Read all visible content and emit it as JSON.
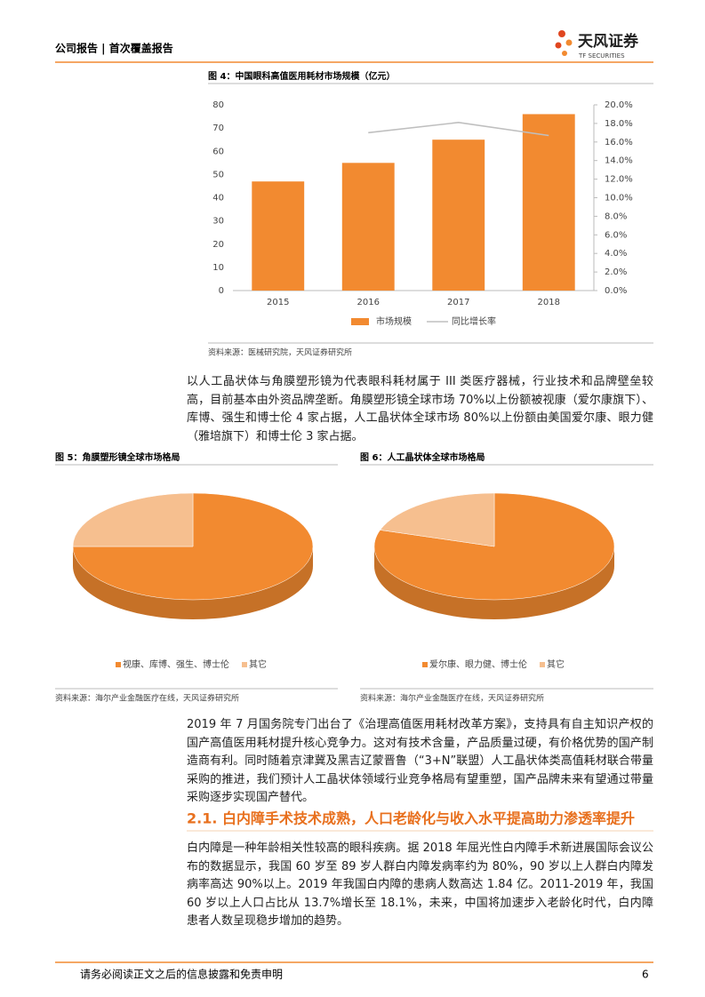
{
  "header": {
    "title": "公司报告 | 首次覆盖报告",
    "logo": "天风证券",
    "logo_sub": "TF SECURITIES"
  },
  "chart_data": [
    {
      "type": "bar",
      "title": "图 4：中国眼科高值医用耗材市场规模（亿元）",
      "categories": [
        "2015",
        "2016",
        "2017",
        "2018"
      ],
      "series": [
        {
          "name": "市场规模",
          "type": "bar",
          "color": "#f28a30",
          "values": [
            47,
            55,
            65,
            76
          ]
        },
        {
          "name": "同比增长率",
          "type": "line",
          "axis": "y2",
          "color": "#bfbfbf",
          "values": [
            null,
            17.0,
            18.1,
            16.7
          ]
        }
      ],
      "ylim": [
        0,
        80
      ],
      "yticks": [
        0,
        10,
        20,
        30,
        40,
        50,
        60,
        70,
        80
      ],
      "y2lim": [
        0,
        20
      ],
      "y2ticks": [
        {
          "value": 0,
          "label": "0.0%"
        },
        {
          "value": 2,
          "label": "2.0%"
        },
        {
          "value": 4,
          "label": "4.0%"
        },
        {
          "value": 6,
          "label": "6.0%"
        },
        {
          "value": 8,
          "label": "8.0%"
        },
        {
          "value": 10,
          "label": "10.0%"
        },
        {
          "value": 12,
          "label": "12.0%"
        },
        {
          "value": 14,
          "label": "14.0%"
        },
        {
          "value": 16,
          "label": "16.0%"
        },
        {
          "value": 18,
          "label": "18.0%"
        },
        {
          "value": 20,
          "label": "20.0%"
        }
      ],
      "legend": "bottom",
      "source": "资料来源：医械研究院，天风证券研究所"
    },
    {
      "type": "pie",
      "title": "图 5：角膜塑形镜全球市场格局",
      "categories": [
        "视康、库博、强生、博士伦",
        "其它"
      ],
      "values": [
        75,
        25
      ],
      "colors": [
        "#f28a30",
        "#f6bf8f"
      ],
      "legend": "bottom",
      "source": "资料来源：海尔产业金融医疗在线，天风证券研究所"
    },
    {
      "type": "pie",
      "title": "图 6：人工晶状体全球市场格局",
      "categories": [
        "爱尔康、眼力健、博士伦",
        "其它"
      ],
      "values": [
        80,
        20
      ],
      "colors": [
        "#f28a30",
        "#f6bf8f"
      ],
      "legend": "bottom",
      "source": "资料来源：海尔产业金融医疗在线，天风证券研究所"
    }
  ],
  "paragraphs": [
    "以人工晶状体与角膜塑形镜为代表眼科耗材属于 III 类医疗器械，行业技术和品牌壁垒较高，目前基本由外资品牌垄断。角膜塑形镜全球市场 70%以上份额被视康（爱尔康旗下）、库博、强生和博士伦 4 家占据，人工晶状体全球市场 80%以上份额由美国爱尔康、眼力健（雅培旗下）和博士伦 3 家占据。",
    "2019 年 7 月国务院专门出台了《治理高值医用耗材改革方案》，支持具有自主知识产权的国产高值医用耗材提升核心竞争力。这对有技术含量，产品质量过硬，有价格优势的国产制造商有利。同时随着京津冀及黑吉辽蒙晋鲁（“3+N”联盟）人工晶状体类高值耗材联合带量采购的推进，我们预计人工晶状体领域行业竞争格局有望重塑，国产品牌未来有望通过带量采购逐步实现国产替代。",
    "白内障是一种年龄相关性较高的眼科疾病。据 2018 年屈光性白内障手术新进展国际会议公布的数据显示，我国 60 岁至 89 岁人群白内障发病率约为 80%，90 岁以上人群白内障发病率高达 90%以上。2019 年我国白内障的患病人数高达 1.84 亿。2011-2019 年，我国 60 岁以上人口占比从 13.7%增长至 18.1%，未来，中国将加速步入老龄化时代，白内障患者人数呈现稳步增加的趋势。"
  ],
  "section_heading": "2.1. 白内障手术技术成熟，人口老龄化与收入水平提高助力渗透率提升",
  "footer": {
    "disclaimer": "请务必阅读正文之后的信息披露和免责申明",
    "page": "6"
  }
}
